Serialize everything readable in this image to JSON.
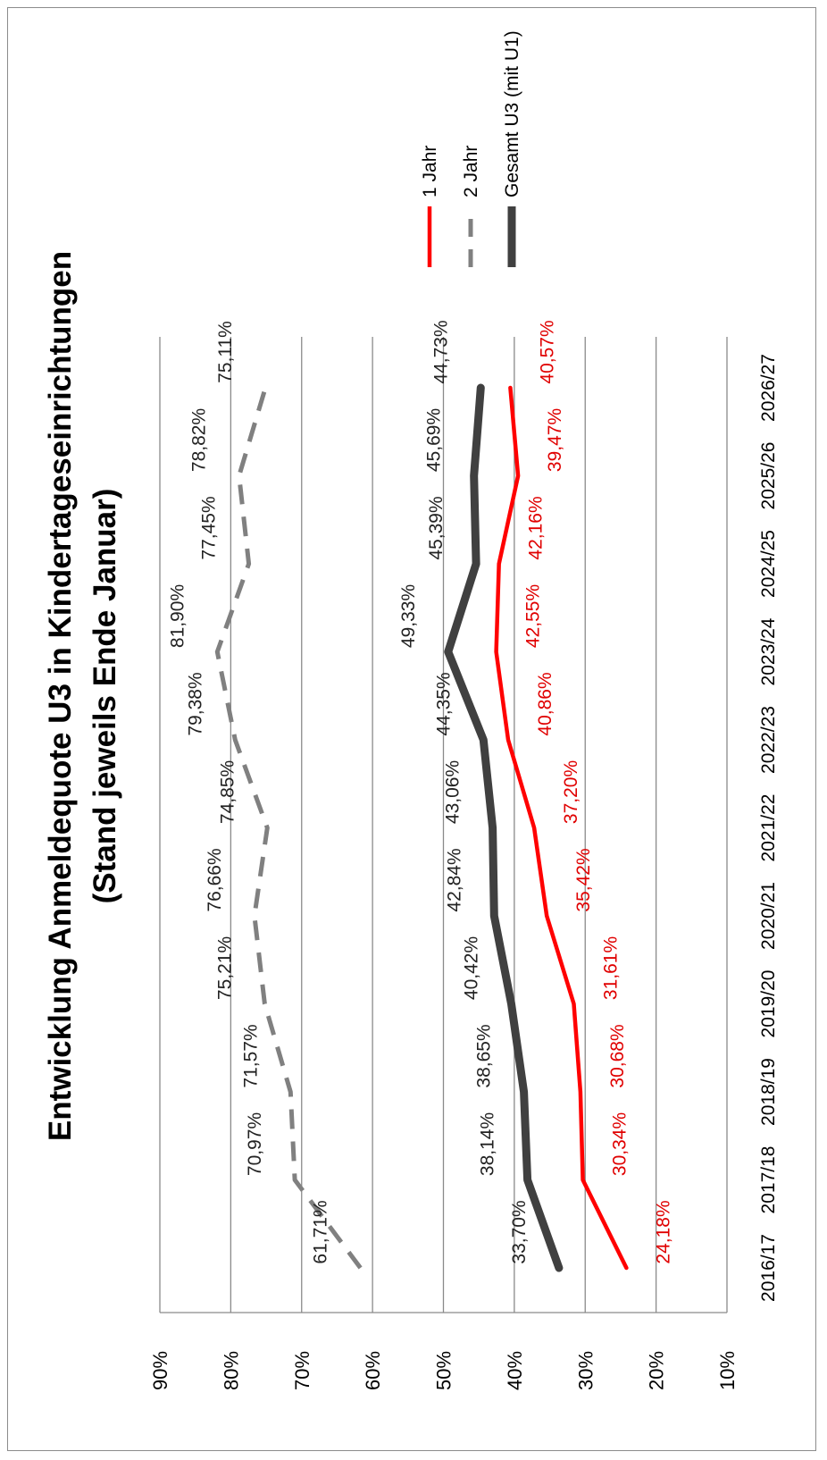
{
  "chart_data": {
    "type": "line",
    "title": "Entwicklung Anmeldequote U3 in Kindertageseinrichtungen",
    "subtitle": "(Stand jeweils Ende Januar)",
    "categories": [
      "2016/17",
      "2017/18",
      "2018/19",
      "2019/20",
      "2020/21",
      "2021/22",
      "2022/23",
      "2023/24",
      "2024/25",
      "2025/26",
      "2026/27"
    ],
    "ylim": [
      10,
      90
    ],
    "yticks": [
      "10%",
      "20%",
      "30%",
      "40%",
      "50%",
      "60%",
      "70%",
      "80%",
      "90%"
    ],
    "grid": true,
    "legend_position": "top-right",
    "series": [
      {
        "name": "1 Jahr",
        "color": "#ff0000",
        "style": "solid",
        "values": [
          24.18,
          30.34,
          30.68,
          31.61,
          35.42,
          37.2,
          40.86,
          42.55,
          42.16,
          39.47,
          40.57
        ],
        "labels": [
          "24,18%",
          "30,34%",
          "30,68%",
          "31,61%",
          "35,42%",
          "37,20%",
          "40,86%",
          "42,55%",
          "42,16%",
          "39,47%",
          "40,57%"
        ]
      },
      {
        "name": "2 Jahr",
        "color": "#808080",
        "style": "dashed",
        "values": [
          61.71,
          70.97,
          71.57,
          75.21,
          76.66,
          74.85,
          79.38,
          81.9,
          77.45,
          78.82,
          75.11
        ],
        "labels": [
          "61,71%",
          "70,97%",
          "71,57%",
          "75,21%",
          "76,66%",
          "74,85%",
          "79,38%",
          "81,90%",
          "77,45%",
          "78,82%",
          "75,11%"
        ]
      },
      {
        "name": "Gesamt U3 (mit U1)",
        "color": "#404040",
        "style": "thick",
        "values": [
          33.7,
          38.14,
          38.65,
          40.42,
          42.84,
          43.06,
          44.35,
          49.33,
          45.39,
          45.69,
          44.73
        ],
        "labels": [
          "33,70%",
          "38,14%",
          "38,65%",
          "40,42%",
          "42,84%",
          "43,06%",
          "44,35%",
          "49,33%",
          "45,39%",
          "45,69%",
          "44,73%"
        ]
      }
    ]
  }
}
